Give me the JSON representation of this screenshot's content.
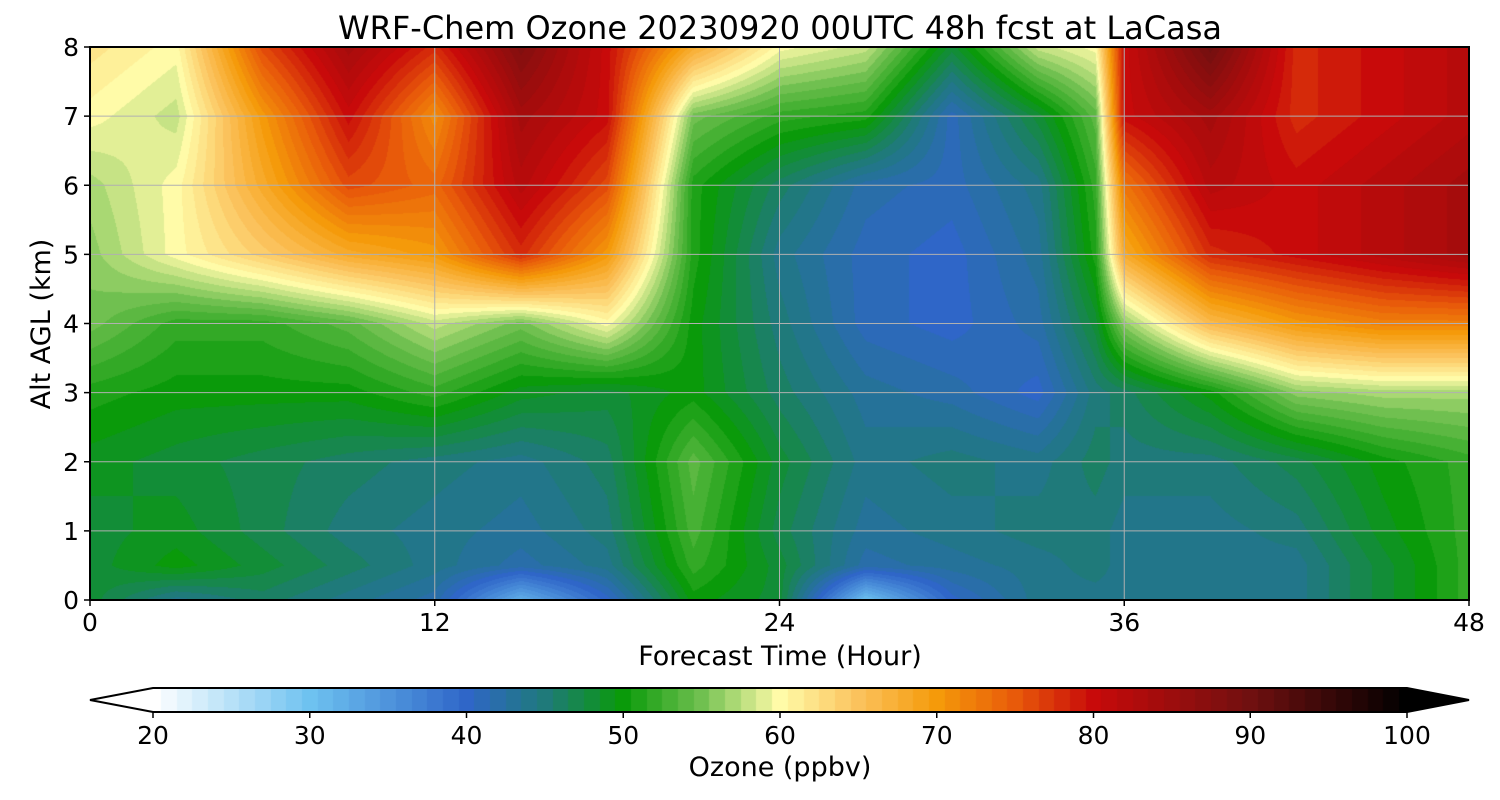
{
  "chart_data": {
    "type": "heatmap",
    "title": "WRF-Chem Ozone  20230920 00UTC 48h fcst at LaCasa",
    "xlabel": "Forecast Time (Hour)",
    "ylabel": "Alt AGL (km)",
    "xlim": [
      0,
      48
    ],
    "ylim": [
      0,
      8
    ],
    "x_ticks": [
      0,
      12,
      24,
      36,
      48
    ],
    "y_ticks": [
      0,
      1,
      2,
      3,
      4,
      5,
      6,
      7,
      8
    ],
    "grid": true,
    "x": [
      0,
      3,
      6,
      9,
      12,
      15,
      18,
      21,
      24,
      27,
      30,
      33,
      35,
      36,
      39,
      42,
      45,
      48
    ],
    "y": [
      0,
      0.5,
      1,
      2,
      3,
      4,
      5,
      6,
      7,
      8
    ],
    "z": [
      [
        48,
        44,
        46,
        44,
        42,
        32,
        40,
        50,
        48,
        30,
        40,
        44,
        44,
        44,
        44,
        44,
        48,
        52
      ],
      [
        48,
        50,
        48,
        46,
        44,
        42,
        44,
        52,
        48,
        42,
        43,
        44,
        45,
        44,
        44,
        44,
        48,
        52
      ],
      [
        48,
        49,
        47,
        45,
        44,
        43,
        45,
        53,
        47,
        43,
        44,
        45,
        45,
        44,
        44,
        45,
        49,
        52
      ],
      [
        49,
        48,
        47,
        46,
        45,
        44,
        46,
        54,
        48,
        44,
        45,
        44,
        46,
        45,
        45,
        47,
        50,
        52
      ],
      [
        51,
        50,
        50,
        50,
        52,
        49,
        48,
        50,
        46,
        43,
        42,
        40,
        45,
        46,
        50,
        56,
        57,
        57
      ],
      [
        55,
        52,
        52,
        54,
        58,
        55,
        60,
        50,
        45,
        41,
        40,
        42,
        48,
        56,
        66,
        70,
        72,
        72
      ],
      [
        56,
        60,
        64,
        68,
        70,
        78,
        70,
        51,
        44,
        41,
        40,
        43,
        51,
        68,
        78,
        80,
        82,
        84
      ],
      [
        57,
        60,
        68,
        76,
        74,
        82,
        76,
        51,
        46,
        42,
        41,
        44,
        52,
        73,
        82,
        80,
        82,
        84
      ],
      [
        60,
        58,
        70,
        80,
        71,
        84,
        80,
        55,
        52,
        51,
        41,
        48,
        54,
        80,
        84,
        78,
        80,
        82
      ],
      [
        62,
        60,
        76,
        84,
        78,
        88,
        80,
        68,
        60,
        58,
        48,
        58,
        60,
        80,
        90,
        78,
        80,
        82
      ]
    ],
    "colorbar": {
      "label": "Ozone  (ppbv)",
      "range": [
        20,
        100
      ],
      "ticks": [
        20,
        30,
        40,
        50,
        60,
        70,
        80,
        90,
        100
      ],
      "extend": "both",
      "stops": [
        {
          "v": 20,
          "color": "#ffffff"
        },
        {
          "v": 30,
          "color": "#6ec2f0"
        },
        {
          "v": 40,
          "color": "#2f66c8"
        },
        {
          "v": 45,
          "color": "#1f7a7a"
        },
        {
          "v": 50,
          "color": "#0a9a0a"
        },
        {
          "v": 55,
          "color": "#70c050"
        },
        {
          "v": 60,
          "color": "#fffba8"
        },
        {
          "v": 65,
          "color": "#fbc25c"
        },
        {
          "v": 70,
          "color": "#f59a0a"
        },
        {
          "v": 75,
          "color": "#e85a0a"
        },
        {
          "v": 80,
          "color": "#c80a0a"
        },
        {
          "v": 90,
          "color": "#701010"
        },
        {
          "v": 100,
          "color": "#000000"
        }
      ]
    }
  }
}
